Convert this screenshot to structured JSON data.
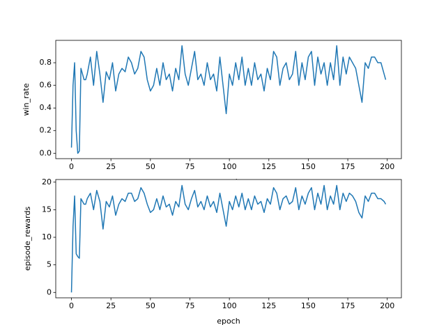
{
  "chart_data": [
    {
      "type": "line",
      "xlabel": "epoch",
      "ylabel": "win_rate",
      "x": [
        0,
        1,
        2,
        3,
        4,
        5,
        6,
        7,
        8,
        9,
        10,
        12,
        14,
        16,
        18,
        20,
        22,
        24,
        26,
        28,
        30,
        32,
        34,
        36,
        38,
        40,
        42,
        44,
        46,
        48,
        50,
        52,
        54,
        56,
        58,
        60,
        62,
        64,
        66,
        68,
        70,
        72,
        74,
        76,
        78,
        80,
        82,
        84,
        86,
        88,
        90,
        92,
        94,
        96,
        98,
        100,
        102,
        104,
        106,
        108,
        110,
        112,
        114,
        116,
        118,
        120,
        122,
        124,
        126,
        128,
        130,
        132,
        134,
        136,
        138,
        140,
        142,
        144,
        146,
        148,
        150,
        152,
        154,
        156,
        158,
        160,
        162,
        164,
        166,
        168,
        170,
        172,
        174,
        176,
        178,
        180,
        182,
        184,
        186,
        188,
        190,
        192,
        194,
        196,
        198,
        199
      ],
      "series": [
        {
          "name": "win_rate",
          "color": "#1f77b4",
          "values": [
            0.05,
            0.6,
            0.8,
            0.2,
            0.0,
            0.02,
            0.75,
            0.7,
            0.65,
            0.65,
            0.7,
            0.85,
            0.6,
            0.9,
            0.7,
            0.45,
            0.72,
            0.65,
            0.8,
            0.55,
            0.7,
            0.75,
            0.72,
            0.85,
            0.8,
            0.7,
            0.75,
            0.9,
            0.85,
            0.65,
            0.55,
            0.6,
            0.75,
            0.6,
            0.8,
            0.65,
            0.7,
            0.55,
            0.75,
            0.65,
            0.95,
            0.7,
            0.6,
            0.75,
            0.9,
            0.65,
            0.7,
            0.6,
            0.8,
            0.65,
            0.7,
            0.55,
            0.85,
            0.6,
            0.35,
            0.7,
            0.6,
            0.8,
            0.65,
            0.85,
            0.6,
            0.75,
            0.6,
            0.8,
            0.65,
            0.7,
            0.55,
            0.75,
            0.65,
            0.9,
            0.85,
            0.6,
            0.75,
            0.8,
            0.65,
            0.7,
            0.9,
            0.6,
            0.8,
            0.65,
            0.85,
            0.9,
            0.6,
            0.85,
            0.7,
            0.8,
            0.6,
            0.8,
            0.65,
            0.95,
            0.6,
            0.85,
            0.7,
            0.85,
            0.8,
            0.75,
            0.6,
            0.45,
            0.8,
            0.75,
            0.85,
            0.85,
            0.8,
            0.8,
            0.7,
            0.65
          ]
        }
      ],
      "xlim": [
        -9.95,
        208.95
      ],
      "xticks": [
        0,
        25,
        50,
        75,
        100,
        125,
        150,
        175,
        200
      ],
      "ylim": [
        -0.0475,
        0.9975
      ],
      "yticks": [
        {
          "value": 0,
          "label": "0.0"
        },
        0.2,
        0.4,
        0.6,
        0.8
      ]
    },
    {
      "type": "line",
      "xlabel": "epoch",
      "ylabel": "episode_rewards",
      "x": [
        0,
        1,
        2,
        3,
        4,
        5,
        6,
        7,
        8,
        9,
        10,
        12,
        14,
        16,
        18,
        20,
        22,
        24,
        26,
        28,
        30,
        32,
        34,
        36,
        38,
        40,
        42,
        44,
        46,
        48,
        50,
        52,
        54,
        56,
        58,
        60,
        62,
        64,
        66,
        68,
        70,
        72,
        74,
        76,
        78,
        80,
        82,
        84,
        86,
        88,
        90,
        92,
        94,
        96,
        98,
        100,
        102,
        104,
        106,
        108,
        110,
        112,
        114,
        116,
        118,
        120,
        122,
        124,
        126,
        128,
        130,
        132,
        134,
        136,
        138,
        140,
        142,
        144,
        146,
        148,
        150,
        152,
        154,
        156,
        158,
        160,
        162,
        164,
        166,
        168,
        170,
        172,
        174,
        176,
        178,
        180,
        182,
        184,
        186,
        188,
        190,
        192,
        194,
        196,
        198,
        199
      ],
      "series": [
        {
          "name": "episode_rewards",
          "color": "#1f77b4",
          "values": [
            0,
            12,
            17.5,
            7,
            6.5,
            6.2,
            17,
            16.5,
            16,
            16,
            17,
            18,
            15,
            18.5,
            16.5,
            11.5,
            16.5,
            15.5,
            17.5,
            14,
            16,
            17,
            16.5,
            18,
            18,
            16.5,
            17,
            19,
            18,
            16,
            14.5,
            15,
            17,
            15,
            17.5,
            15.5,
            16,
            14,
            16.5,
            15.5,
            19.4,
            16,
            15,
            17,
            18.5,
            15.5,
            16.5,
            15,
            17.5,
            15.5,
            16.5,
            14.5,
            18,
            15,
            12,
            16.5,
            15,
            17.5,
            15.5,
            18,
            15,
            17,
            15,
            17.5,
            16,
            16.5,
            14.5,
            17,
            16,
            19,
            18,
            15,
            17,
            17.5,
            16,
            16.5,
            19,
            15,
            17.5,
            16,
            18,
            19,
            15,
            18,
            16,
            19.4,
            15,
            17.5,
            16,
            19.4,
            15,
            18,
            16.5,
            18,
            17.5,
            16.5,
            14.5,
            13.5,
            17.5,
            16.5,
            18,
            18,
            17,
            17,
            16.5,
            16
          ]
        }
      ],
      "xlim": [
        -9.95,
        208.95
      ],
      "xticks": [
        0,
        25,
        50,
        75,
        100,
        125,
        150,
        175,
        200
      ],
      "ylim": [
        -0.975,
        20.475
      ],
      "yticks": [
        0,
        5,
        10,
        15,
        20
      ]
    }
  ]
}
